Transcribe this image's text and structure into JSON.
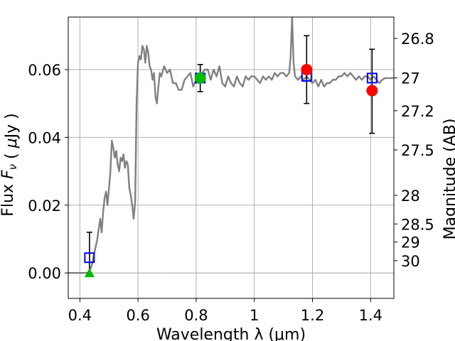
{
  "chart_data": {
    "type": "line",
    "title": "",
    "xlabel": "Wavelength  λ (μm)",
    "ylabel": "Flux  F_ν  ( μJy )",
    "y2label": "Magnitude (AB)",
    "xlim": [
      0.36,
      1.48
    ],
    "ylim": [
      -0.0075,
      0.0755
    ],
    "grid": true,
    "x_ticks": [
      {
        "value": 0.4,
        "label": "0.4"
      },
      {
        "value": 0.6,
        "label": "0.6"
      },
      {
        "value": 0.8,
        "label": "0.8"
      },
      {
        "value": 1.0,
        "label": "1"
      },
      {
        "value": 1.2,
        "label": "1.2"
      },
      {
        "value": 1.4,
        "label": "1.4"
      }
    ],
    "y_ticks": [
      {
        "value": 0.0,
        "label": "0.00"
      },
      {
        "value": 0.02,
        "label": "0.02"
      },
      {
        "value": 0.04,
        "label": "0.04"
      },
      {
        "value": 0.06,
        "label": "0.06"
      }
    ],
    "mag_ticks": [
      {
        "value": 26.8,
        "label": "26.8"
      },
      {
        "value": 27.0,
        "label": "27"
      },
      {
        "value": 27.2,
        "label": "27.2"
      },
      {
        "value": 27.5,
        "label": "27.5"
      },
      {
        "value": 28.0,
        "label": "28"
      },
      {
        "value": 28.5,
        "label": "28.5"
      },
      {
        "value": 29.0,
        "label": "29"
      },
      {
        "value": 30.0,
        "label": "30"
      }
    ],
    "colors": {
      "spectrum": "#808080",
      "squares": "#0000ff",
      "circles": "#ff0000",
      "triangle": "#00bb00",
      "green_circle": "#00bb00",
      "errorbars": "#000000",
      "grid": "#b0b0b0"
    },
    "series": [
      {
        "type": "line",
        "points": [
          [
            0.36,
            0.0
          ],
          [
            0.42,
            0.0
          ],
          [
            0.43,
            0.0
          ],
          [
            0.44,
            0.002
          ],
          [
            0.45,
            0.006
          ],
          [
            0.46,
            0.01
          ],
          [
            0.465,
            0.013
          ],
          [
            0.47,
            0.016
          ],
          [
            0.475,
            0.012
          ],
          [
            0.48,
            0.018
          ],
          [
            0.485,
            0.022
          ],
          [
            0.49,
            0.024
          ],
          [
            0.495,
            0.02
          ],
          [
            0.5,
            0.025
          ],
          [
            0.505,
            0.03
          ],
          [
            0.51,
            0.039
          ],
          [
            0.515,
            0.037
          ],
          [
            0.52,
            0.034
          ],
          [
            0.525,
            0.036
          ],
          [
            0.53,
            0.032
          ],
          [
            0.535,
            0.03
          ],
          [
            0.54,
            0.034
          ],
          [
            0.545,
            0.033
          ],
          [
            0.55,
            0.035
          ],
          [
            0.555,
            0.031
          ],
          [
            0.56,
            0.033
          ],
          [
            0.565,
            0.032
          ],
          [
            0.57,
            0.025
          ],
          [
            0.575,
            0.023
          ],
          [
            0.58,
            0.02
          ],
          [
            0.585,
            0.016
          ],
          [
            0.59,
            0.021
          ],
          [
            0.595,
            0.05
          ],
          [
            0.6,
            0.062
          ],
          [
            0.605,
            0.064
          ],
          [
            0.61,
            0.063
          ],
          [
            0.615,
            0.067
          ],
          [
            0.62,
            0.066
          ],
          [
            0.625,
            0.062
          ],
          [
            0.63,
            0.067
          ],
          [
            0.635,
            0.065
          ],
          [
            0.64,
            0.061
          ],
          [
            0.645,
            0.06
          ],
          [
            0.65,
            0.057
          ],
          [
            0.655,
            0.059
          ],
          [
            0.66,
            0.052
          ],
          [
            0.665,
            0.05
          ],
          [
            0.67,
            0.055
          ],
          [
            0.675,
            0.059
          ],
          [
            0.68,
            0.058
          ],
          [
            0.69,
            0.061
          ],
          [
            0.7,
            0.059
          ],
          [
            0.71,
            0.06
          ],
          [
            0.72,
            0.056
          ],
          [
            0.73,
            0.056
          ],
          [
            0.74,
            0.054
          ],
          [
            0.75,
            0.054
          ],
          [
            0.76,
            0.057
          ],
          [
            0.77,
            0.058
          ],
          [
            0.78,
            0.059
          ],
          [
            0.79,
            0.055
          ],
          [
            0.8,
            0.057
          ],
          [
            0.81,
            0.056
          ],
          [
            0.82,
            0.059
          ],
          [
            0.83,
            0.06
          ],
          [
            0.84,
            0.06
          ],
          [
            0.85,
            0.057
          ],
          [
            0.86,
            0.06
          ],
          [
            0.87,
            0.058
          ],
          [
            0.88,
            0.061
          ],
          [
            0.89,
            0.056
          ],
          [
            0.9,
            0.055
          ],
          [
            0.91,
            0.058
          ],
          [
            0.92,
            0.056
          ],
          [
            0.93,
            0.055
          ],
          [
            0.94,
            0.058
          ],
          [
            0.95,
            0.056
          ],
          [
            0.96,
            0.055
          ],
          [
            0.97,
            0.058
          ],
          [
            0.98,
            0.057
          ],
          [
            0.99,
            0.058
          ],
          [
            1.0,
            0.058
          ],
          [
            1.01,
            0.057
          ],
          [
            1.02,
            0.056
          ],
          [
            1.03,
            0.058
          ],
          [
            1.04,
            0.057
          ],
          [
            1.05,
            0.058
          ],
          [
            1.06,
            0.057
          ],
          [
            1.07,
            0.059
          ],
          [
            1.08,
            0.058
          ],
          [
            1.09,
            0.059
          ],
          [
            1.1,
            0.059
          ],
          [
            1.11,
            0.058
          ],
          [
            1.12,
            0.059
          ],
          [
            1.125,
            0.064
          ],
          [
            1.13,
            0.0755
          ],
          [
            1.135,
            0.062
          ],
          [
            1.14,
            0.058
          ],
          [
            1.15,
            0.057
          ],
          [
            1.16,
            0.058
          ],
          [
            1.17,
            0.057
          ],
          [
            1.18,
            0.058
          ],
          [
            1.19,
            0.057
          ],
          [
            1.2,
            0.056
          ],
          [
            1.21,
            0.057
          ],
          [
            1.22,
            0.055
          ],
          [
            1.23,
            0.057
          ],
          [
            1.24,
            0.055
          ],
          [
            1.25,
            0.056
          ],
          [
            1.26,
            0.056
          ],
          [
            1.27,
            0.057
          ],
          [
            1.28,
            0.057
          ],
          [
            1.29,
            0.058
          ],
          [
            1.3,
            0.058
          ],
          [
            1.31,
            0.059
          ],
          [
            1.32,
            0.058
          ],
          [
            1.33,
            0.059
          ],
          [
            1.34,
            0.058
          ],
          [
            1.35,
            0.057
          ],
          [
            1.36,
            0.058
          ],
          [
            1.37,
            0.057
          ],
          [
            1.38,
            0.058
          ],
          [
            1.39,
            0.058
          ],
          [
            1.4,
            0.057
          ],
          [
            1.41,
            0.058
          ],
          [
            1.42,
            0.057
          ],
          [
            1.43,
            0.056
          ],
          [
            1.44,
            0.057
          ],
          [
            1.45,
            0.0575
          ],
          [
            1.46,
            0.0575
          ],
          [
            1.47,
            0.0575
          ],
          [
            1.48,
            0.0575
          ]
        ]
      },
      {
        "type": "scatter",
        "marker": "square-open",
        "points": [
          {
            "x": 0.433,
            "y": 0.0045
          },
          {
            "x": 0.814,
            "y": 0.0575
          },
          {
            "x": 1.18,
            "y": 0.058
          },
          {
            "x": 1.405,
            "y": 0.0575
          }
        ]
      },
      {
        "type": "scatter",
        "marker": "circle",
        "points": [
          {
            "x": 1.18,
            "y": 0.06
          },
          {
            "x": 1.405,
            "y": 0.0538
          }
        ]
      },
      {
        "type": "scatter",
        "marker": "circle-green",
        "points": [
          {
            "x": 0.814,
            "y": 0.0575
          }
        ]
      },
      {
        "type": "scatter",
        "marker": "triangle",
        "points": [
          {
            "x": 0.433,
            "y": 0.0
          }
        ]
      },
      {
        "type": "errorbar",
        "points": [
          {
            "x": 0.433,
            "low": 0.0,
            "high": 0.012
          },
          {
            "x": 0.814,
            "low": 0.0535,
            "high": 0.0615
          },
          {
            "x": 1.18,
            "low": 0.05,
            "high": 0.07
          },
          {
            "x": 1.405,
            "low": 0.0412,
            "high": 0.066
          }
        ]
      }
    ]
  }
}
